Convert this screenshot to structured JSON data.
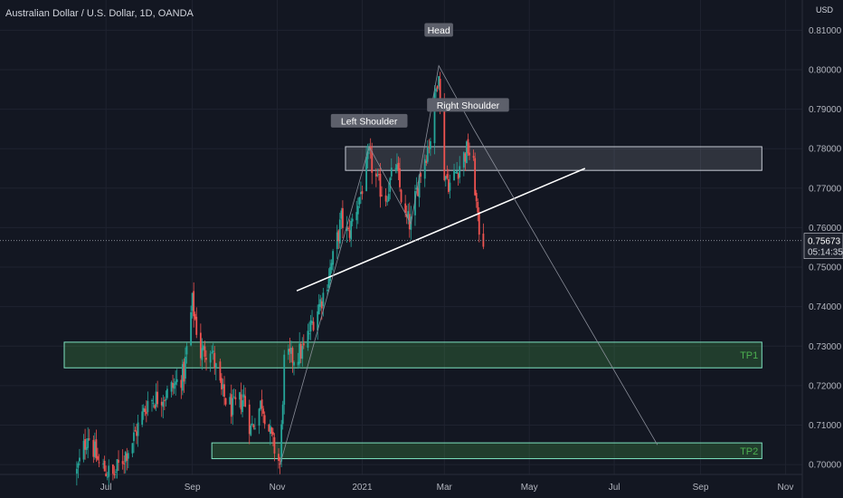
{
  "header": {
    "title": "Australian Dollar / U.S. Dollar, 1D, OANDA",
    "currency": "USD"
  },
  "price_tag": {
    "price": "0.75673",
    "countdown": "05:14:35"
  },
  "chart_data": {
    "type": "candlestick",
    "title": "Australian Dollar / U.S. Dollar, 1D, OANDA",
    "y_axis": {
      "ticks": [
        "0.70000",
        "0.71000",
        "0.72000",
        "0.73000",
        "0.74000",
        "0.75000",
        "0.76000",
        "0.77000",
        "0.78000",
        "0.79000",
        "0.80000",
        "0.81000"
      ],
      "range": [
        0.6975,
        0.8165
      ],
      "unit": "USD"
    },
    "x_axis": {
      "ticks": [
        "Jul",
        "Sep",
        "Nov",
        "2021",
        "Mar",
        "May",
        "Jul",
        "Sep",
        "Nov"
      ]
    },
    "current_price": 0.75673,
    "price_path": [
      [
        "2020-06-10",
        0.698
      ],
      [
        "2020-06-18",
        0.708
      ],
      [
        "2020-06-26",
        0.7
      ],
      [
        "2020-07-06",
        0.697
      ],
      [
        "2020-07-20",
        0.706
      ],
      [
        "2020-07-31",
        0.716
      ],
      [
        "2020-08-14",
        0.718
      ],
      [
        "2020-08-26",
        0.723
      ],
      [
        "2020-09-01",
        0.741
      ],
      [
        "2020-09-07",
        0.728
      ],
      [
        "2020-09-14",
        0.73
      ],
      [
        "2020-09-22",
        0.718
      ],
      [
        "2020-09-30",
        0.714
      ],
      [
        "2020-10-08",
        0.717
      ],
      [
        "2020-10-13",
        0.709
      ],
      [
        "2020-10-21",
        0.716
      ],
      [
        "2020-10-28",
        0.706
      ],
      [
        "2020-11-03",
        0.7
      ],
      [
        "2020-11-06",
        0.726
      ],
      [
        "2020-11-12",
        0.727
      ],
      [
        "2020-11-20",
        0.729
      ],
      [
        "2020-11-27",
        0.737
      ],
      [
        "2020-12-04",
        0.743
      ],
      [
        "2020-12-11",
        0.752
      ],
      [
        "2020-12-17",
        0.762
      ],
      [
        "2020-12-22",
        0.758
      ],
      [
        "2020-12-31",
        0.769
      ],
      [
        "2021-01-06",
        0.778
      ],
      [
        "2021-01-12",
        0.771
      ],
      [
        "2021-01-18",
        0.768
      ],
      [
        "2021-01-25",
        0.776
      ],
      [
        "2021-02-01",
        0.762
      ],
      [
        "2021-02-05",
        0.761
      ],
      [
        "2021-02-11",
        0.773
      ],
      [
        "2021-02-19",
        0.783
      ],
      [
        "2021-02-25",
        0.801
      ],
      [
        "2021-02-26",
        0.79
      ],
      [
        "2021-03-01",
        0.774
      ],
      [
        "2021-03-05",
        0.771
      ],
      [
        "2021-03-12",
        0.776
      ],
      [
        "2021-03-18",
        0.78
      ],
      [
        "2021-03-22",
        0.775
      ],
      [
        "2021-03-25",
        0.761
      ],
      [
        "2021-03-29",
        0.757
      ]
    ],
    "annotations": [
      {
        "text": "Left Shoulder",
        "date": "2021-01-06",
        "price": 0.7865
      },
      {
        "text": "Head",
        "date": "2021-02-25",
        "price": 0.8095
      },
      {
        "text": "Right Shoulder",
        "date": "2021-03-18",
        "price": 0.7905
      }
    ],
    "zones": [
      {
        "label": "",
        "from": "2020-12-20",
        "to": "2021-10-15",
        "top": 0.7805,
        "bottom": 0.7745,
        "color": "#b2b5be"
      },
      {
        "label": "TP1",
        "from": "2020-06-01",
        "to": "2021-10-15",
        "top": 0.731,
        "bottom": 0.7245,
        "color": "#4caf50"
      },
      {
        "label": "TP2",
        "from": "2020-09-15",
        "to": "2021-10-15",
        "top": 0.7055,
        "bottom": 0.7015,
        "color": "#4caf50"
      }
    ],
    "neckline": [
      [
        "2020-11-15",
        0.744
      ],
      [
        "2021-06-10",
        0.775
      ]
    ],
    "projection": [
      [
        "2020-11-03",
        0.7
      ],
      [
        "2021-01-06",
        0.7805
      ],
      [
        "2021-02-05",
        0.761
      ],
      [
        "2021-02-25",
        0.801
      ],
      [
        "2021-03-22",
        0.785
      ],
      [
        "2021-08-01",
        0.705
      ]
    ],
    "pattern": "Head and Shoulders"
  },
  "colors": {
    "background": "#131722",
    "up": "#26a69a",
    "down": "#ef5350",
    "grid": "#1f2330"
  }
}
